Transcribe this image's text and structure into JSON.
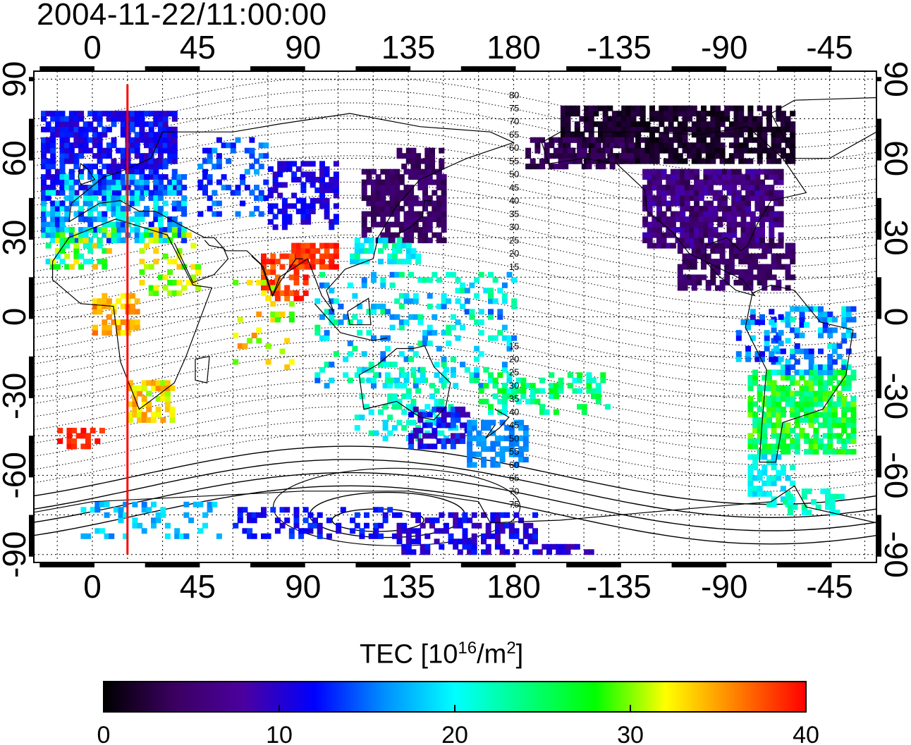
{
  "title": "2004-11-22/11:00:00",
  "map": {
    "lon_ticks_label": [
      "0",
      "45",
      "90",
      "135",
      "180",
      "-135",
      "-90",
      "-45"
    ],
    "lon_ticks_value": [
      0,
      45,
      90,
      135,
      180,
      225,
      270,
      315
    ],
    "lat_ticks_label": [
      "90",
      "60",
      "30",
      "0",
      "-30",
      "-60",
      "-90"
    ],
    "lat_ticks_value": [
      90,
      60,
      30,
      0,
      -30,
      -60,
      -90
    ],
    "lon_range": [
      -25,
      335
    ],
    "lat_range": [
      -93,
      93
    ],
    "terminator_longitude": 15,
    "north_contour_labels": [
      "80",
      "75",
      "70",
      "65",
      "60",
      "55",
      "50",
      "45",
      "40",
      "35",
      "30",
      "25",
      "20",
      "15"
    ],
    "south_contour_labels": [
      "15",
      "20",
      "25",
      "30",
      "35",
      "40",
      "45",
      "50",
      "55",
      "60",
      "65",
      "70",
      "75"
    ]
  },
  "colorbar": {
    "title_main": "TEC  [10",
    "title_exp1": "16",
    "title_mid": "/m",
    "title_exp2": "2",
    "title_end": "]",
    "ticks": [
      "0",
      "10",
      "20",
      "30",
      "40"
    ],
    "tick_values": [
      0,
      10,
      20,
      30,
      40
    ],
    "range": [
      0,
      40
    ]
  },
  "colors": {
    "colormap": [
      "#000000",
      "#3a0060",
      "#4b00a0",
      "#0000ff",
      "#0090ff",
      "#00ffff",
      "#00ff80",
      "#00ff00",
      "#ffff00",
      "#ff8000",
      "#ff0000"
    ],
    "terminator": "#ff0000"
  }
}
